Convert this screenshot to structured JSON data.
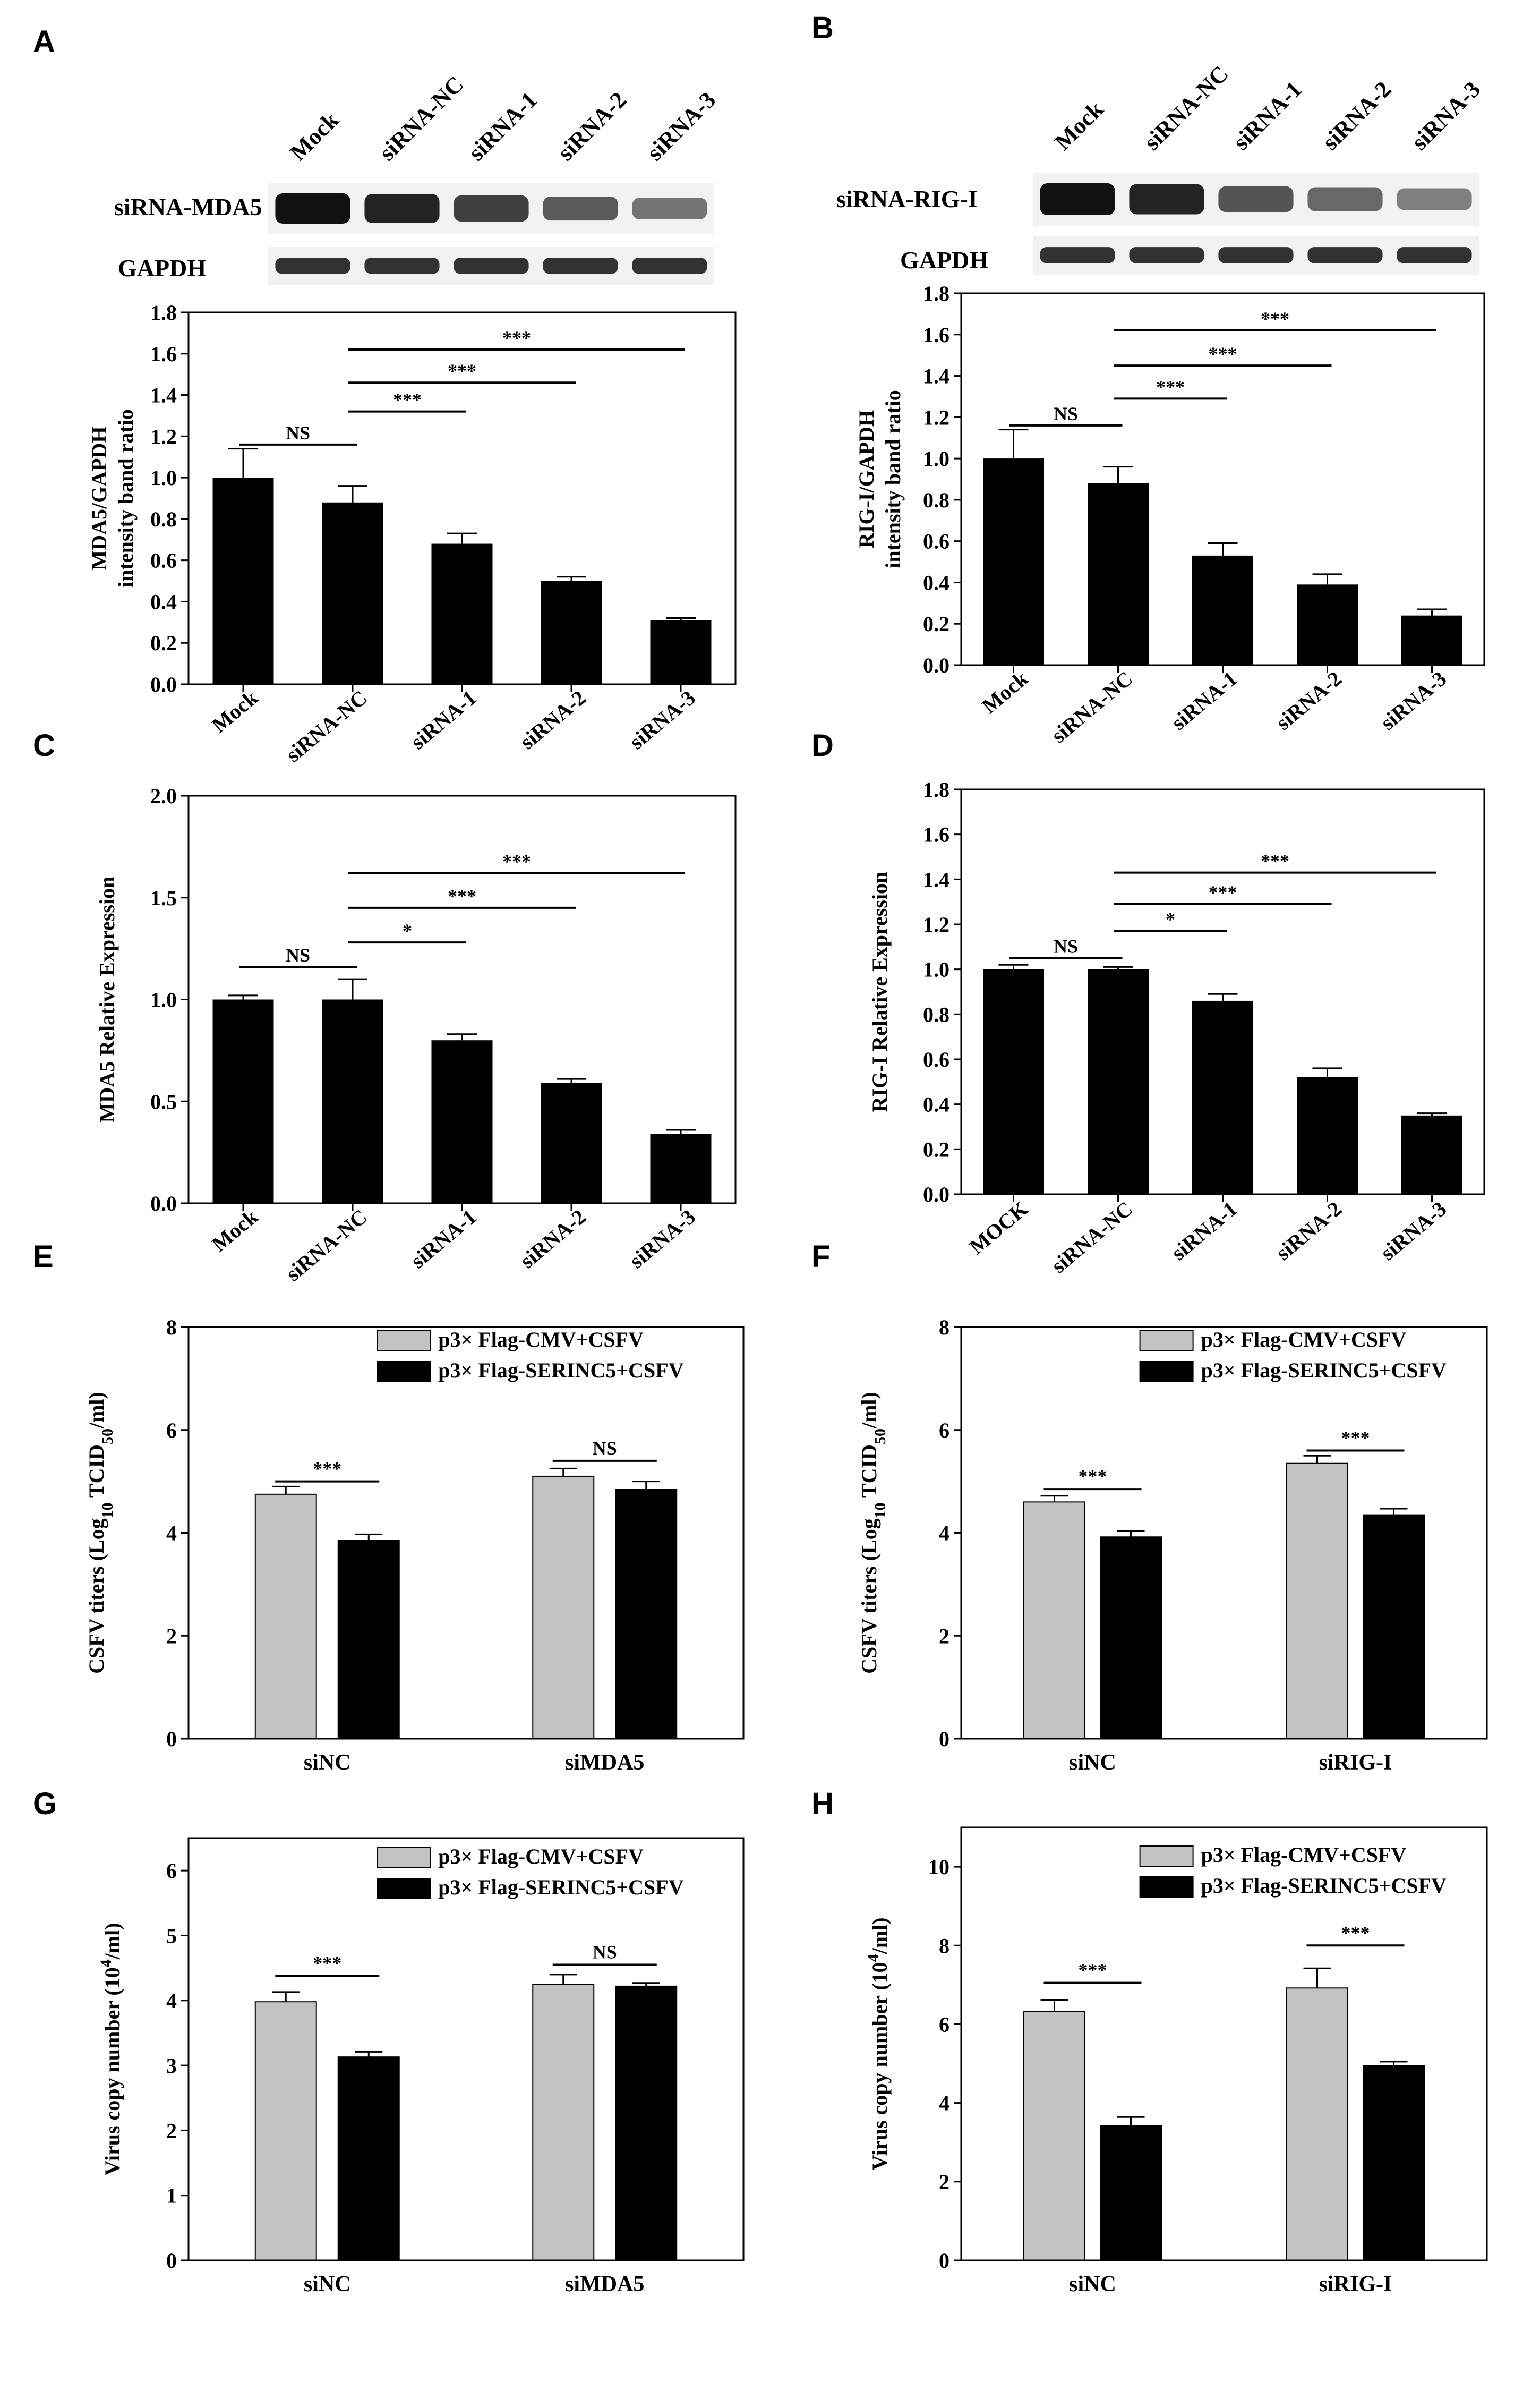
{
  "colors": {
    "black": "#000000",
    "gray": "#c3c3c3",
    "blot_band": "#111111",
    "blot_bg": "#f2f2f2"
  },
  "panels": [
    {
      "id": "A",
      "letter": "A",
      "blot": {
        "lanes": [
          "Mock",
          "siRNA-NC",
          "siRNA-1",
          "siRNA-2",
          "siRNA-3"
        ],
        "target_label": "siRNA-MDA5",
        "ref_label": "GAPDH",
        "target_intensity": [
          1.0,
          0.88,
          0.68,
          0.5,
          0.32
        ],
        "ref_intensity": [
          1,
          1,
          1,
          1,
          1
        ]
      }
    },
    {
      "id": "B",
      "letter": "B",
      "blot": {
        "lanes": [
          "Mock",
          "siRNA-NC",
          "siRNA-1",
          "siRNA-2",
          "siRNA-3"
        ],
        "target_label": "siRNA-RIG-I",
        "ref_label": "GAPDH",
        "target_intensity": [
          1.0,
          0.88,
          0.54,
          0.4,
          0.24
        ],
        "ref_intensity": [
          1,
          1,
          1,
          1,
          1
        ]
      }
    },
    {
      "id": "C",
      "letter": "C"
    },
    {
      "id": "D",
      "letter": "D"
    },
    {
      "id": "E",
      "letter": "E"
    },
    {
      "id": "F",
      "letter": "F"
    },
    {
      "id": "G",
      "letter": "G"
    },
    {
      "id": "H",
      "letter": "H"
    }
  ],
  "chart_data": [
    {
      "panel": "A",
      "type": "bar",
      "categories": [
        "Mock",
        "siRNA-NC",
        "siRNA-1",
        "siRNA-2",
        "siRNA-3"
      ],
      "values": [
        1.0,
        0.88,
        0.68,
        0.5,
        0.31
      ],
      "errors": [
        0.14,
        0.08,
        0.05,
        0.02,
        0.01
      ],
      "ylabel": "MDA5/GAPDH intensity band ratio",
      "ylim": [
        0,
        1.8
      ],
      "yticks": [
        "0.0",
        "0.2",
        "0.4",
        "0.6",
        "0.8",
        "1.0",
        "1.2",
        "1.4",
        "1.6",
        "1.8"
      ],
      "ytick_values": [
        0,
        0.2,
        0.4,
        0.6,
        0.8,
        1.0,
        1.2,
        1.4,
        1.6,
        1.8
      ],
      "significance": [
        {
          "from": 0,
          "to": 1,
          "level": 1.16,
          "label": "NS"
        },
        {
          "from": 1,
          "to": 2,
          "level": 1.32,
          "label": "***"
        },
        {
          "from": 1,
          "to": 3,
          "level": 1.46,
          "label": "***"
        },
        {
          "from": 1,
          "to": 4,
          "level": 1.62,
          "label": "***"
        }
      ]
    },
    {
      "panel": "B",
      "type": "bar",
      "categories": [
        "Mock",
        "siRNA-NC",
        "siRNA-1",
        "siRNA-2",
        "siRNA-3"
      ],
      "values": [
        1.0,
        0.88,
        0.53,
        0.39,
        0.24
      ],
      "errors": [
        0.14,
        0.08,
        0.06,
        0.05,
        0.03
      ],
      "ylabel": "RIG-I/GAPDH intensity band ratio",
      "ylim": [
        0,
        1.8
      ],
      "yticks": [
        "0.0",
        "0.2",
        "0.4",
        "0.6",
        "0.8",
        "1.0",
        "1.2",
        "1.4",
        "1.6",
        "1.8"
      ],
      "ytick_values": [
        0,
        0.2,
        0.4,
        0.6,
        0.8,
        1.0,
        1.2,
        1.4,
        1.6,
        1.8
      ],
      "significance": [
        {
          "from": 0,
          "to": 1,
          "level": 1.16,
          "label": "NS"
        },
        {
          "from": 1,
          "to": 2,
          "level": 1.29,
          "label": "***"
        },
        {
          "from": 1,
          "to": 3,
          "level": 1.45,
          "label": "***"
        },
        {
          "from": 1,
          "to": 4,
          "level": 1.62,
          "label": "***"
        }
      ]
    },
    {
      "panel": "C",
      "type": "bar",
      "categories": [
        "Mock",
        "siRNA-NC",
        "siRNA-1",
        "siRNA-2",
        "siRNA-3"
      ],
      "values": [
        1.0,
        1.0,
        0.8,
        0.59,
        0.34
      ],
      "errors": [
        0.02,
        0.1,
        0.03,
        0.02,
        0.02
      ],
      "ylabel": "MDA5 Relative Expression",
      "ylim": [
        0,
        2.0
      ],
      "yticks": [
        "0.0",
        "0.5",
        "1.0",
        "1.5",
        "2.0"
      ],
      "ytick_values": [
        0,
        0.5,
        1.0,
        1.5,
        2.0
      ],
      "significance": [
        {
          "from": 0,
          "to": 1,
          "level": 1.16,
          "label": "NS"
        },
        {
          "from": 1,
          "to": 2,
          "level": 1.28,
          "label": "*"
        },
        {
          "from": 1,
          "to": 3,
          "level": 1.45,
          "label": "***"
        },
        {
          "from": 1,
          "to": 4,
          "level": 1.62,
          "label": "***"
        }
      ]
    },
    {
      "panel": "D",
      "type": "bar",
      "categories": [
        "MOCK",
        "siRNA-NC",
        "siRNA-1",
        "siRNA-2",
        "siRNA-3"
      ],
      "values": [
        1.0,
        1.0,
        0.86,
        0.52,
        0.35
      ],
      "errors": [
        0.02,
        0.01,
        0.03,
        0.04,
        0.01
      ],
      "ylabel": "RIG-I Relative Expression",
      "ylim": [
        0,
        1.8
      ],
      "yticks": [
        "0.0",
        "0.2",
        "0.4",
        "0.6",
        "0.8",
        "1.0",
        "1.2",
        "1.4",
        "1.6",
        "1.8"
      ],
      "ytick_values": [
        0,
        0.2,
        0.4,
        0.6,
        0.8,
        1.0,
        1.2,
        1.4,
        1.6,
        1.8
      ],
      "significance": [
        {
          "from": 0,
          "to": 1,
          "level": 1.05,
          "label": "NS"
        },
        {
          "from": 1,
          "to": 2,
          "level": 1.17,
          "label": "*"
        },
        {
          "from": 1,
          "to": 3,
          "level": 1.29,
          "label": "***"
        },
        {
          "from": 1,
          "to": 4,
          "level": 1.43,
          "label": "***"
        }
      ]
    },
    {
      "panel": "E",
      "type": "grouped_bar",
      "categories": [
        "siNC",
        "siMDA5"
      ],
      "series": [
        {
          "name": "p3× Flag-CMV+CSFV",
          "color": "#c3c3c3",
          "values": [
            4.75,
            5.1
          ],
          "errors": [
            0.15,
            0.15
          ]
        },
        {
          "name": "p3× Flag-SERINC5+CSFV",
          "color": "#000000",
          "values": [
            3.85,
            4.85
          ],
          "errors": [
            0.12,
            0.15
          ]
        }
      ],
      "ylabel": "CSFV titers (Log10 TCID50/ml)",
      "ylim": [
        0,
        8
      ],
      "yticks": [
        "0",
        "2",
        "4",
        "6",
        "8"
      ],
      "ytick_values": [
        0,
        2,
        4,
        6,
        8
      ],
      "significance": [
        {
          "group": 0,
          "level": 5.0,
          "label": "***"
        },
        {
          "group": 1,
          "level": 5.4,
          "label": "NS"
        }
      ]
    },
    {
      "panel": "F",
      "type": "grouped_bar",
      "categories": [
        "siNC",
        "siRIG-I"
      ],
      "series": [
        {
          "name": "p3× Flag-CMV+CSFV",
          "color": "#c3c3c3",
          "values": [
            4.6,
            5.35
          ],
          "errors": [
            0.12,
            0.15
          ]
        },
        {
          "name": "p3× Flag-SERINC5+CSFV",
          "color": "#000000",
          "values": [
            3.92,
            4.35
          ],
          "errors": [
            0.12,
            0.12
          ]
        }
      ],
      "ylabel": "CSFV titers (Log10 TCID50/ml)",
      "ylim": [
        0,
        8
      ],
      "yticks": [
        "0",
        "2",
        "4",
        "6",
        "8"
      ],
      "ytick_values": [
        0,
        2,
        4,
        6,
        8
      ],
      "significance": [
        {
          "group": 0,
          "level": 4.85,
          "label": "***"
        },
        {
          "group": 1,
          "level": 5.6,
          "label": "***"
        }
      ]
    },
    {
      "panel": "G",
      "type": "grouped_bar",
      "categories": [
        "siNC",
        "siMDA5"
      ],
      "series": [
        {
          "name": "p3× Flag-CMV+CSFV",
          "color": "#c3c3c3",
          "values": [
            3.98,
            4.25
          ],
          "errors": [
            0.15,
            0.15
          ]
        },
        {
          "name": "p3× Flag-SERINC5+CSFV",
          "color": "#000000",
          "values": [
            3.13,
            4.22
          ],
          "errors": [
            0.08,
            0.05
          ]
        }
      ],
      "ylabel": "Virus copy number (104/ml)",
      "ylim": [
        0,
        6.5
      ],
      "yticks": [
        "0",
        "1",
        "2",
        "3",
        "4",
        "5",
        "6"
      ],
      "ytick_values": [
        0,
        1,
        2,
        3,
        4,
        5,
        6
      ],
      "significance": [
        {
          "group": 0,
          "level": 4.38,
          "label": "***"
        },
        {
          "group": 1,
          "level": 4.55,
          "label": "NS"
        }
      ]
    },
    {
      "panel": "H",
      "type": "grouped_bar",
      "categories": [
        "siNC",
        "siRIG-I"
      ],
      "series": [
        {
          "name": "p3× Flag-CMV+CSFV",
          "color": "#c3c3c3",
          "values": [
            6.32,
            6.92
          ],
          "errors": [
            0.3,
            0.5
          ]
        },
        {
          "name": "p3× Flag-SERINC5+CSFV",
          "color": "#000000",
          "values": [
            3.42,
            4.95
          ],
          "errors": [
            0.22,
            0.1
          ]
        }
      ],
      "ylabel": "Virus copy number (104/ml)",
      "ylim": [
        0,
        11
      ],
      "yticks": [
        "0",
        "2",
        "4",
        "6",
        "8",
        "10"
      ],
      "ytick_values": [
        0,
        2,
        4,
        6,
        8,
        10
      ],
      "significance": [
        {
          "group": 0,
          "level": 7.05,
          "label": "***"
        },
        {
          "group": 1,
          "level": 8.0,
          "label": "***"
        }
      ]
    }
  ]
}
